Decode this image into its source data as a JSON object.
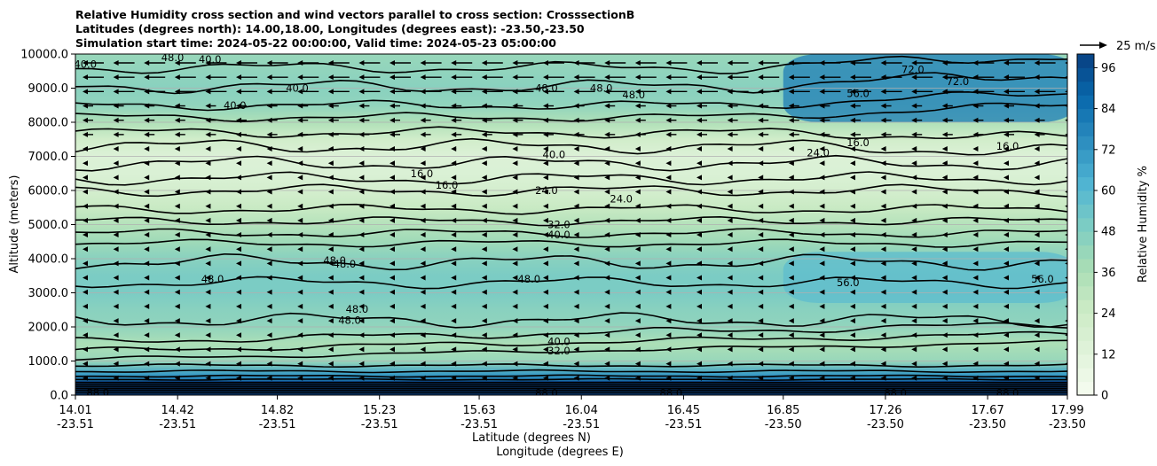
{
  "chart_data": {
    "type": "heatmap",
    "title": [
      "Relative Humidity cross section and wind vectors parallel to cross section: CrosssectionB",
      "Latitudes (degrees north): 14.00,18.00, Longitudes (degrees east): -23.50,-23.50",
      "Simulation start time: 2024-05-22 00:00:00, Valid time: 2024-05-23 05:00:00"
    ],
    "ylabel": "Altitude (meters)",
    "xlabel": "Latitude (degrees N)",
    "xlabel2": "Longitude (degrees E)",
    "ylim": [
      0,
      10000
    ],
    "yticks": [
      "0.0",
      "1000.0",
      "2000.0",
      "3000.0",
      "4000.0",
      "5000.0",
      "6000.0",
      "7000.0",
      "8000.0",
      "9000.0",
      "10000.0"
    ],
    "xticks": [
      {
        "lat": "14.01",
        "lon": "-23.51"
      },
      {
        "lat": "14.42",
        "lon": "-23.51"
      },
      {
        "lat": "14.82",
        "lon": "-23.51"
      },
      {
        "lat": "15.23",
        "lon": "-23.51"
      },
      {
        "lat": "15.63",
        "lon": "-23.51"
      },
      {
        "lat": "16.04",
        "lon": "-23.51"
      },
      {
        "lat": "16.45",
        "lon": "-23.51"
      },
      {
        "lat": "16.85",
        "lon": "-23.50"
      },
      {
        "lat": "17.26",
        "lon": "-23.50"
      },
      {
        "lat": "17.67",
        "lon": "-23.50"
      },
      {
        "lat": "17.99",
        "lon": "-23.50"
      }
    ],
    "colorbar": {
      "label": "Relative Humidity %",
      "range": [
        0,
        100
      ],
      "ticks": [
        "0",
        "12",
        "24",
        "36",
        "48",
        "60",
        "72",
        "84",
        "96"
      ],
      "colormap": [
        "#f7fcf0",
        "#e0f3db",
        "#ccebc5",
        "#a8ddb5",
        "#7bccc4",
        "#4eb3d3",
        "#2b8cbe",
        "#0868ac",
        "#084081"
      ]
    },
    "quiver_key": "25 m/s",
    "grid": "horizontal",
    "rh_profile": [
      {
        "z": 0,
        "rh": 97
      },
      {
        "z": 300,
        "rh": 92
      },
      {
        "z": 600,
        "rh": 70
      },
      {
        "z": 1000,
        "rh": 42
      },
      {
        "z": 1500,
        "rh": 36
      },
      {
        "z": 2000,
        "rh": 44
      },
      {
        "z": 2500,
        "rh": 46
      },
      {
        "z": 3000,
        "rh": 50
      },
      {
        "z": 3500,
        "rh": 50
      },
      {
        "z": 4000,
        "rh": 46
      },
      {
        "z": 4500,
        "rh": 40
      },
      {
        "z": 5000,
        "rh": 33
      },
      {
        "z": 5500,
        "rh": 26
      },
      {
        "z": 6000,
        "rh": 20
      },
      {
        "z": 6500,
        "rh": 16
      },
      {
        "z": 7000,
        "rh": 15
      },
      {
        "z": 7500,
        "rh": 22
      },
      {
        "z": 8000,
        "rh": 35
      },
      {
        "z": 8500,
        "rh": 44
      },
      {
        "z": 9000,
        "rh": 46
      },
      {
        "z": 9500,
        "rh": 44
      },
      {
        "z": 10000,
        "rh": 42
      }
    ],
    "moist_upper_region": {
      "x_from": "16.85",
      "x_to": "17.99",
      "z_from": 8000,
      "z_to": 10000,
      "rh": 80
    },
    "moist_mid_region": {
      "x_from": "16.85",
      "x_to": "17.99",
      "z_from": 2700,
      "z_to": 4200,
      "rh": 58
    },
    "contour_labels": [
      {
        "text": "40.0",
        "x": 14.05,
        "z": 9700
      },
      {
        "text": "48.0",
        "x": 14.4,
        "z": 9900
      },
      {
        "text": "40.0",
        "x": 14.55,
        "z": 9850
      },
      {
        "text": "40.0",
        "x": 14.9,
        "z": 9000
      },
      {
        "text": "40.0",
        "x": 14.65,
        "z": 8500
      },
      {
        "text": "48.0",
        "x": 15.9,
        "z": 9000
      },
      {
        "text": "48.0",
        "x": 16.12,
        "z": 9000
      },
      {
        "text": "48.0",
        "x": 16.25,
        "z": 8800
      },
      {
        "text": "16.0",
        "x": 15.4,
        "z": 6500
      },
      {
        "text": "16.0",
        "x": 15.5,
        "z": 6150
      },
      {
        "text": "40.0",
        "x": 15.93,
        "z": 7050
      },
      {
        "text": "24.0",
        "x": 15.9,
        "z": 6000
      },
      {
        "text": "24.0",
        "x": 16.2,
        "z": 5750
      },
      {
        "text": "24.0",
        "x": 16.99,
        "z": 7100
      },
      {
        "text": "16.0",
        "x": 17.15,
        "z": 7400
      },
      {
        "text": "16.0",
        "x": 17.75,
        "z": 7300
      },
      {
        "text": "56.0",
        "x": 17.15,
        "z": 8850
      },
      {
        "text": "72.0",
        "x": 17.37,
        "z": 9550
      },
      {
        "text": "72.0",
        "x": 17.55,
        "z": 9200
      },
      {
        "text": "32.0",
        "x": 15.95,
        "z": 5000
      },
      {
        "text": "40.0",
        "x": 15.95,
        "z": 4700
      },
      {
        "text": "48.0",
        "x": 15.05,
        "z": 3950
      },
      {
        "text": "48.0",
        "x": 15.09,
        "z": 3850
      },
      {
        "text": "48.0",
        "x": 14.56,
        "z": 3400
      },
      {
        "text": "48.0",
        "x": 15.83,
        "z": 3400
      },
      {
        "text": "48.0",
        "x": 15.14,
        "z": 2520
      },
      {
        "text": "48.0",
        "x": 15.11,
        "z": 2200
      },
      {
        "text": "56.0",
        "x": 17.11,
        "z": 3300
      },
      {
        "text": "56.0",
        "x": 17.89,
        "z": 3400
      },
      {
        "text": "40.0",
        "x": 15.95,
        "z": 1570
      },
      {
        "text": "32.0",
        "x": 15.95,
        "z": 1300
      },
      {
        "text": "88.0",
        "x": 14.1,
        "z": 80
      },
      {
        "text": "88.0",
        "x": 15.9,
        "z": 60
      },
      {
        "text": "88.0",
        "x": 16.4,
        "z": 70
      },
      {
        "text": "88.0",
        "x": 17.3,
        "z": 60
      },
      {
        "text": "88.0",
        "x": 17.75,
        "z": 60
      }
    ]
  }
}
